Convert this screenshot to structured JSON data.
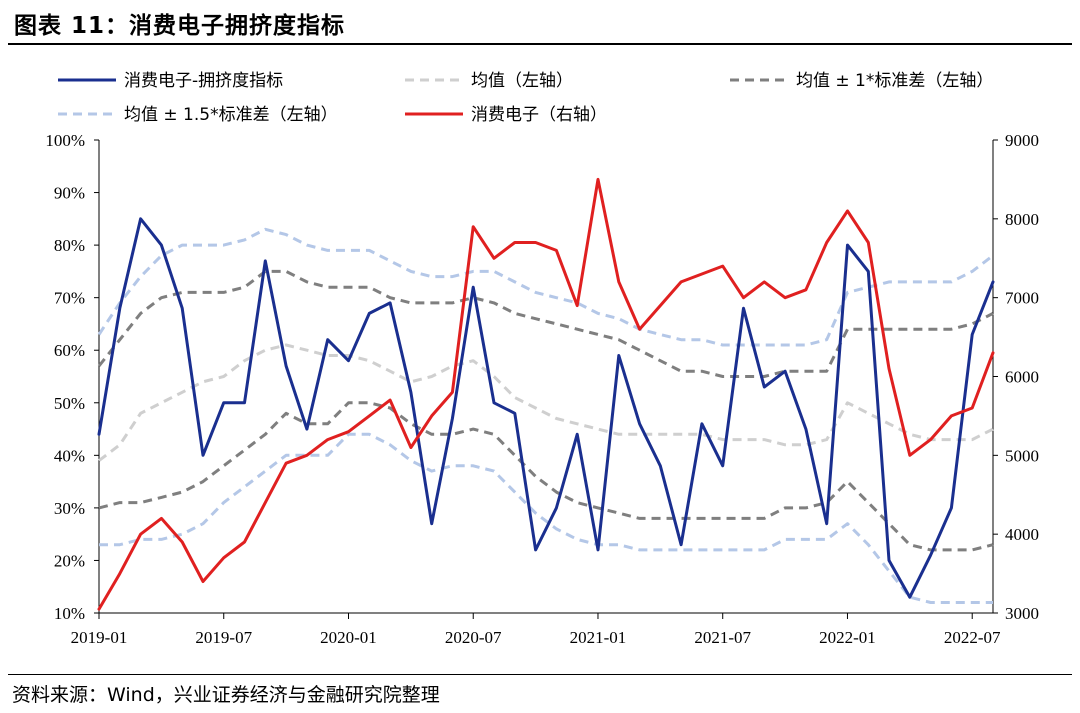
{
  "header": {
    "title": "图表 11：消费电子拥挤度指标"
  },
  "footer": {
    "source": "资料来源：Wind，兴业证券经济与金融研究院整理"
  },
  "colors": {
    "crowding": "#1a2f8f",
    "mean": "#cfcfcf",
    "std1": "#7f7f7f",
    "std15": "#b4c7e7",
    "price": "#e02020"
  },
  "chart_data": {
    "type": "line",
    "title": "消费电子拥挤度指标",
    "x": [
      "2019-01",
      "2019-02",
      "2019-03",
      "2019-04",
      "2019-05",
      "2019-06",
      "2019-07",
      "2019-08",
      "2019-09",
      "2019-10",
      "2019-11",
      "2019-12",
      "2020-01",
      "2020-02",
      "2020-03",
      "2020-04",
      "2020-05",
      "2020-06",
      "2020-07",
      "2020-08",
      "2020-09",
      "2020-10",
      "2020-11",
      "2020-12",
      "2021-01",
      "2021-02",
      "2021-03",
      "2021-04",
      "2021-05",
      "2021-06",
      "2021-07",
      "2021-08",
      "2021-09",
      "2021-10",
      "2021-11",
      "2021-12",
      "2022-01",
      "2022-02",
      "2022-03",
      "2022-04",
      "2022-05",
      "2022-06",
      "2022-07",
      "2022-08"
    ],
    "x_ticks": [
      "2019-01",
      "2019-07",
      "2020-01",
      "2020-07",
      "2021-01",
      "2021-07",
      "2022-01",
      "2022-07"
    ],
    "y_left": {
      "ticks": [
        "10%",
        "20%",
        "30%",
        "40%",
        "50%",
        "60%",
        "70%",
        "80%",
        "90%",
        "100%"
      ],
      "ylim": [
        10,
        100
      ]
    },
    "y_right": {
      "ticks": [
        "3000",
        "4000",
        "5000",
        "6000",
        "7000",
        "8000",
        "9000"
      ],
      "ylim": [
        3000,
        9000
      ]
    },
    "series": [
      {
        "name": "消费电子-拥挤度指标",
        "axis": "left",
        "style": "solid",
        "values": [
          44,
          68,
          85,
          80,
          68,
          40,
          50,
          50,
          77,
          57,
          45,
          62,
          58,
          67,
          69,
          52,
          27,
          47,
          72,
          50,
          48,
          22,
          30,
          44,
          22,
          59,
          46,
          38,
          23,
          46,
          38,
          68,
          53,
          56,
          45,
          27,
          80,
          75,
          20,
          13,
          21,
          30,
          63,
          73
        ]
      },
      {
        "name": "均值（左轴）",
        "axis": "left",
        "style": "dashed",
        "values": [
          39,
          42,
          48,
          50,
          52,
          54,
          55,
          58,
          60,
          61,
          60,
          59,
          59,
          58,
          56,
          54,
          55,
          57,
          58,
          55,
          51,
          49,
          47,
          46,
          45,
          44,
          44,
          44,
          44,
          44,
          43,
          43,
          43,
          42,
          42,
          43,
          50,
          48,
          46,
          44,
          43,
          43,
          43,
          45
        ]
      },
      {
        "name": "均值 ± 1*标准差（左轴）- 上",
        "axis": "left",
        "style": "dashed",
        "values": [
          57,
          62,
          67,
          70,
          71,
          71,
          71,
          72,
          75,
          75,
          73,
          72,
          72,
          72,
          70,
          69,
          69,
          69,
          70,
          69,
          67,
          66,
          65,
          64,
          63,
          62,
          60,
          58,
          56,
          56,
          55,
          55,
          55,
          56,
          56,
          56,
          64,
          64,
          64,
          64,
          64,
          64,
          65,
          67
        ]
      },
      {
        "name": "均值 ± 1*标准差（左轴）- 下",
        "axis": "left",
        "style": "dashed",
        "values": [
          30,
          31,
          31,
          32,
          33,
          35,
          38,
          41,
          44,
          48,
          46,
          46,
          50,
          50,
          49,
          46,
          44,
          44,
          45,
          44,
          40,
          36,
          33,
          31,
          30,
          29,
          28,
          28,
          28,
          28,
          28,
          28,
          28,
          30,
          30,
          31,
          35,
          31,
          27,
          23,
          22,
          22,
          22,
          23
        ]
      },
      {
        "name": "均值 ± 1.5*标准差（左轴）- 上",
        "axis": "left",
        "style": "dashed",
        "values": [
          63,
          69,
          74,
          78,
          80,
          80,
          80,
          81,
          83,
          82,
          80,
          79,
          79,
          79,
          77,
          75,
          74,
          74,
          75,
          75,
          73,
          71,
          70,
          69,
          67,
          66,
          64,
          63,
          62,
          62,
          61,
          61,
          61,
          61,
          61,
          62,
          71,
          72,
          73,
          73,
          73,
          73,
          75,
          78
        ]
      },
      {
        "name": "均值 ± 1.5*标准差（左轴）- 下",
        "axis": "left",
        "style": "dashed",
        "values": [
          23,
          23,
          24,
          24,
          25,
          27,
          31,
          34,
          37,
          40,
          40,
          40,
          44,
          44,
          42,
          39,
          37,
          38,
          38,
          37,
          33,
          29,
          26,
          24,
          23,
          23,
          22,
          22,
          22,
          22,
          22,
          22,
          22,
          24,
          24,
          24,
          27,
          23,
          18,
          13,
          12,
          12,
          12,
          12
        ]
      },
      {
        "name": "消费电子（右轴）",
        "axis": "right",
        "style": "solid",
        "values": [
          3050,
          3500,
          4000,
          4200,
          3900,
          3400,
          3700,
          3900,
          4400,
          4900,
          5000,
          5200,
          5300,
          5500,
          5700,
          5100,
          5500,
          5800,
          7900,
          7500,
          7700,
          7700,
          7600,
          6900,
          8500,
          7200,
          6600,
          6900,
          7200,
          7300,
          7400,
          7000,
          7200,
          7000,
          7100,
          7700,
          8100,
          7700,
          6100,
          5000,
          5200,
          5500,
          5600,
          6300
        ]
      }
    ],
    "legend": [
      {
        "label": "消费电子-拥挤度指标",
        "color": "#1a2f8f",
        "style": "solid"
      },
      {
        "label": "均值（左轴）",
        "color": "#cfcfcf",
        "style": "dashed"
      },
      {
        "label": "均值 ± 1*标准差（左轴）",
        "color": "#7f7f7f",
        "style": "dashed"
      },
      {
        "label": "均值 ± 1.5*标准差（左轴）",
        "color": "#b4c7e7",
        "style": "dashed"
      },
      {
        "label": "消费电子（右轴）",
        "color": "#e02020",
        "style": "solid"
      }
    ]
  }
}
